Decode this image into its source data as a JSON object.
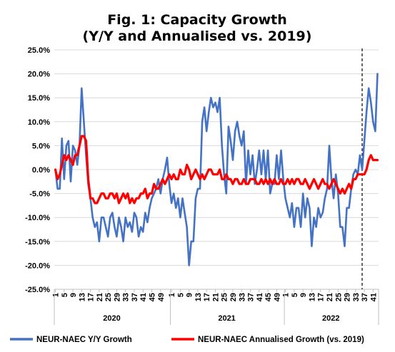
{
  "chart_data": {
    "type": "line",
    "title": "Fig. 1: Capacity Growth",
    "subtitle": "(Y/Y and Annualised vs. 2019)",
    "ylim": [
      -25,
      25
    ],
    "y_ticks": [
      "25.0%",
      "20.0%",
      "15.0%",
      "10.0%",
      "5.0%",
      "0.0%",
      "-5.0%",
      "-10.0%",
      "-15.0%",
      "-20.0%",
      "-25.0%"
    ],
    "y_tick_values": [
      25,
      20,
      15,
      10,
      5,
      0,
      -5,
      -10,
      -15,
      -20,
      -25
    ],
    "x_tick_labels": [
      "1",
      "5",
      "9",
      "13",
      "17",
      "21",
      "25",
      "29",
      "33",
      "37",
      "41",
      "45",
      "49",
      "1",
      "5",
      "9",
      "13",
      "17",
      "21",
      "25",
      "29",
      "33",
      "37",
      "41",
      "45",
      "49",
      "1",
      "5",
      "9",
      "13",
      "17",
      "21",
      "25",
      "29",
      "33",
      "37",
      "41"
    ],
    "x_tick_index": [
      1,
      5,
      9,
      13,
      17,
      21,
      25,
      29,
      33,
      37,
      41,
      45,
      49,
      54,
      58,
      62,
      66,
      70,
      74,
      78,
      82,
      86,
      90,
      94,
      98,
      102,
      106,
      110,
      114,
      118,
      122,
      126,
      130,
      134,
      138,
      142,
      146
    ],
    "years": [
      {
        "label": "2020",
        "start": 1,
        "end": 53
      },
      {
        "label": "2021",
        "start": 54,
        "end": 105
      },
      {
        "label": "2022",
        "start": 106,
        "end": 148
      }
    ],
    "n_weeks": 148,
    "vline_week": 141,
    "series": [
      {
        "name": "NEUR-NAEC Y/Y Growth",
        "color": "#4472C4",
        "points": [
          [
            1,
            0
          ],
          [
            2,
            -4
          ],
          [
            3,
            -4
          ],
          [
            4,
            6.5
          ],
          [
            5,
            -2
          ],
          [
            6,
            5
          ],
          [
            7,
            6
          ],
          [
            8,
            -2.5
          ],
          [
            9,
            5
          ],
          [
            10,
            4
          ],
          [
            11,
            1
          ],
          [
            12,
            5
          ],
          [
            13,
            17
          ],
          [
            14,
            10
          ],
          [
            15,
            3
          ],
          [
            16,
            -3
          ],
          [
            17,
            -6
          ],
          [
            18,
            -10
          ],
          [
            19,
            -12
          ],
          [
            20,
            -11
          ],
          [
            21,
            -15
          ],
          [
            22,
            -10
          ],
          [
            23,
            -10
          ],
          [
            24,
            -12
          ],
          [
            25,
            -14
          ],
          [
            26,
            -10
          ],
          [
            27,
            -9
          ],
          [
            28,
            -12
          ],
          [
            29,
            -14
          ],
          [
            30,
            -10
          ],
          [
            31,
            -12
          ],
          [
            32,
            -15
          ],
          [
            33,
            -10
          ],
          [
            34,
            -12
          ],
          [
            35,
            -11
          ],
          [
            36,
            -13
          ],
          [
            37,
            -9
          ],
          [
            38,
            -10
          ],
          [
            39,
            -14
          ],
          [
            40,
            -12
          ],
          [
            41,
            -13
          ],
          [
            42,
            -9
          ],
          [
            43,
            -11
          ],
          [
            44,
            -8
          ],
          [
            45,
            -6
          ],
          [
            46,
            -5
          ],
          [
            47,
            -4
          ],
          [
            48,
            -2
          ],
          [
            49,
            -5
          ],
          [
            50,
            -2
          ],
          [
            51,
            0
          ],
          [
            52,
            2.5
          ],
          [
            53,
            -3
          ],
          [
            54,
            -7
          ],
          [
            55,
            -5
          ],
          [
            56,
            -8
          ],
          [
            57,
            -6
          ],
          [
            58,
            -10
          ],
          [
            59,
            -6
          ],
          [
            60,
            -9
          ],
          [
            61,
            -12
          ],
          [
            62,
            -20
          ],
          [
            63,
            -15
          ],
          [
            64,
            -15
          ],
          [
            65,
            -6
          ],
          [
            66,
            -4
          ],
          [
            67,
            -4
          ],
          [
            68,
            10
          ],
          [
            69,
            13
          ],
          [
            70,
            8
          ],
          [
            71,
            12
          ],
          [
            72,
            15
          ],
          [
            73,
            13
          ],
          [
            74,
            14
          ],
          [
            75,
            12
          ],
          [
            76,
            15
          ],
          [
            77,
            5
          ],
          [
            78,
            -1
          ],
          [
            79,
            -5
          ],
          [
            80,
            9
          ],
          [
            81,
            6
          ],
          [
            82,
            2
          ],
          [
            83,
            8
          ],
          [
            84,
            10
          ],
          [
            85,
            7
          ],
          [
            86,
            5
          ],
          [
            87,
            8
          ],
          [
            88,
            -3
          ],
          [
            89,
            4
          ],
          [
            90,
            -1
          ],
          [
            91,
            3
          ],
          [
            92,
            -3
          ],
          [
            93,
            0
          ],
          [
            94,
            4
          ],
          [
            95,
            -1
          ],
          [
            96,
            4
          ],
          [
            97,
            -2
          ],
          [
            98,
            4
          ],
          [
            99,
            -5
          ],
          [
            100,
            -3
          ],
          [
            101,
            -3
          ],
          [
            102,
            3
          ],
          [
            103,
            -2
          ],
          [
            104,
            4
          ],
          [
            105,
            -2
          ],
          [
            106,
            -6
          ],
          [
            107,
            -8
          ],
          [
            108,
            -10
          ],
          [
            109,
            -7
          ],
          [
            110,
            -12
          ],
          [
            111,
            -8
          ],
          [
            112,
            -8
          ],
          [
            113,
            -12
          ],
          [
            114,
            -5
          ],
          [
            115,
            -10
          ],
          [
            116,
            -6
          ],
          [
            117,
            -8
          ],
          [
            118,
            -16
          ],
          [
            119,
            -10
          ],
          [
            120,
            -12
          ],
          [
            121,
            -8
          ],
          [
            122,
            -10
          ],
          [
            123,
            -9
          ],
          [
            124,
            -6
          ],
          [
            125,
            -4
          ],
          [
            126,
            5
          ],
          [
            127,
            -2
          ],
          [
            128,
            -6
          ],
          [
            129,
            -1
          ],
          [
            130,
            -5
          ],
          [
            131,
            -12
          ],
          [
            132,
            -12
          ],
          [
            133,
            -16
          ],
          [
            134,
            -8
          ],
          [
            135,
            -8
          ],
          [
            136,
            -4
          ],
          [
            137,
            -1
          ],
          [
            138,
            0
          ],
          [
            139,
            -1
          ],
          [
            140,
            3
          ],
          [
            141,
            0
          ],
          [
            142,
            6
          ],
          [
            143,
            12
          ],
          [
            144,
            17
          ],
          [
            145,
            14
          ],
          [
            146,
            10
          ],
          [
            147,
            8
          ],
          [
            148,
            20
          ]
        ]
      },
      {
        "name": "NEUR-NAEC Annualised Growth (vs. 2019)",
        "color": "#FF0000",
        "points": [
          [
            1,
            0
          ],
          [
            2,
            -2
          ],
          [
            3,
            -1
          ],
          [
            4,
            1
          ],
          [
            5,
            3
          ],
          [
            6,
            2
          ],
          [
            7,
            3
          ],
          [
            8,
            2
          ],
          [
            9,
            1
          ],
          [
            10,
            3
          ],
          [
            11,
            3
          ],
          [
            12,
            5
          ],
          [
            13,
            7
          ],
          [
            14,
            7
          ],
          [
            15,
            6
          ],
          [
            16,
            -2
          ],
          [
            17,
            -6
          ],
          [
            18,
            -6
          ],
          [
            19,
            -7
          ],
          [
            20,
            -7
          ],
          [
            21,
            -6
          ],
          [
            22,
            -5
          ],
          [
            23,
            -5
          ],
          [
            24,
            -6
          ],
          [
            25,
            -6
          ],
          [
            26,
            -5
          ],
          [
            27,
            -5
          ],
          [
            28,
            -6
          ],
          [
            29,
            -5
          ],
          [
            30,
            -7
          ],
          [
            31,
            -6
          ],
          [
            32,
            -5
          ],
          [
            33,
            -6
          ],
          [
            34,
            -5
          ],
          [
            35,
            -7
          ],
          [
            36,
            -6
          ],
          [
            37,
            -7
          ],
          [
            38,
            -6
          ],
          [
            39,
            -6
          ],
          [
            40,
            -5
          ],
          [
            41,
            -5
          ],
          [
            42,
            -4
          ],
          [
            43,
            -6
          ],
          [
            44,
            -5
          ],
          [
            45,
            -5
          ],
          [
            46,
            -3
          ],
          [
            47,
            -4
          ],
          [
            48,
            -4
          ],
          [
            49,
            -3
          ],
          [
            50,
            -2
          ],
          [
            51,
            -3
          ],
          [
            52,
            -2
          ],
          [
            53,
            -1
          ],
          [
            54,
            -2
          ],
          [
            55,
            -1
          ],
          [
            56,
            -2
          ],
          [
            57,
            -2
          ],
          [
            58,
            0
          ],
          [
            59,
            -1
          ],
          [
            60,
            -1
          ],
          [
            61,
            1
          ],
          [
            62,
            0
          ],
          [
            63,
            -2
          ],
          [
            64,
            -1
          ],
          [
            65,
            0
          ],
          [
            66,
            -1
          ],
          [
            67,
            -2
          ],
          [
            68,
            -1
          ],
          [
            69,
            -2
          ],
          [
            70,
            -1
          ],
          [
            71,
            0
          ],
          [
            72,
            0
          ],
          [
            73,
            -1
          ],
          [
            74,
            -1
          ],
          [
            75,
            -1
          ],
          [
            76,
            0
          ],
          [
            77,
            -2
          ],
          [
            78,
            -2
          ],
          [
            79,
            -1
          ],
          [
            80,
            -2
          ],
          [
            81,
            -2
          ],
          [
            82,
            -3
          ],
          [
            83,
            -2
          ],
          [
            84,
            -2
          ],
          [
            85,
            -3
          ],
          [
            86,
            -3
          ],
          [
            87,
            -2
          ],
          [
            88,
            -3
          ],
          [
            89,
            -3
          ],
          [
            90,
            -2
          ],
          [
            91,
            -2
          ],
          [
            92,
            -2
          ],
          [
            93,
            -3
          ],
          [
            94,
            -3
          ],
          [
            95,
            -2
          ],
          [
            96,
            -3
          ],
          [
            97,
            -2
          ],
          [
            98,
            -3
          ],
          [
            99,
            -2
          ],
          [
            100,
            -3
          ],
          [
            101,
            -2
          ],
          [
            102,
            -3
          ],
          [
            103,
            -3
          ],
          [
            104,
            -2
          ],
          [
            105,
            -3
          ],
          [
            106,
            -3
          ],
          [
            107,
            -2
          ],
          [
            108,
            -3
          ],
          [
            109,
            -2
          ],
          [
            110,
            -3
          ],
          [
            111,
            -2
          ],
          [
            112,
            -2
          ],
          [
            113,
            -3
          ],
          [
            114,
            -3
          ],
          [
            115,
            -2
          ],
          [
            116,
            -3
          ],
          [
            117,
            -4
          ],
          [
            118,
            -3
          ],
          [
            119,
            -2
          ],
          [
            120,
            -3
          ],
          [
            121,
            -4
          ],
          [
            122,
            -3
          ],
          [
            123,
            -2
          ],
          [
            124,
            -3
          ],
          [
            125,
            -3
          ],
          [
            126,
            -4
          ],
          [
            127,
            -3
          ],
          [
            128,
            -2
          ],
          [
            129,
            -3
          ],
          [
            130,
            -4
          ],
          [
            131,
            -5
          ],
          [
            132,
            -4
          ],
          [
            133,
            -5
          ],
          [
            134,
            -4
          ],
          [
            135,
            -3
          ],
          [
            136,
            -4
          ],
          [
            137,
            -2
          ],
          [
            138,
            -2
          ],
          [
            139,
            -1
          ],
          [
            140,
            -1
          ],
          [
            141,
            -1
          ],
          [
            142,
            -1
          ],
          [
            143,
            0
          ],
          [
            144,
            2
          ],
          [
            145,
            3
          ],
          [
            146,
            2
          ],
          [
            147,
            2
          ],
          [
            148,
            2
          ]
        ]
      }
    ],
    "legend_position": "bottom",
    "grid": true
  }
}
